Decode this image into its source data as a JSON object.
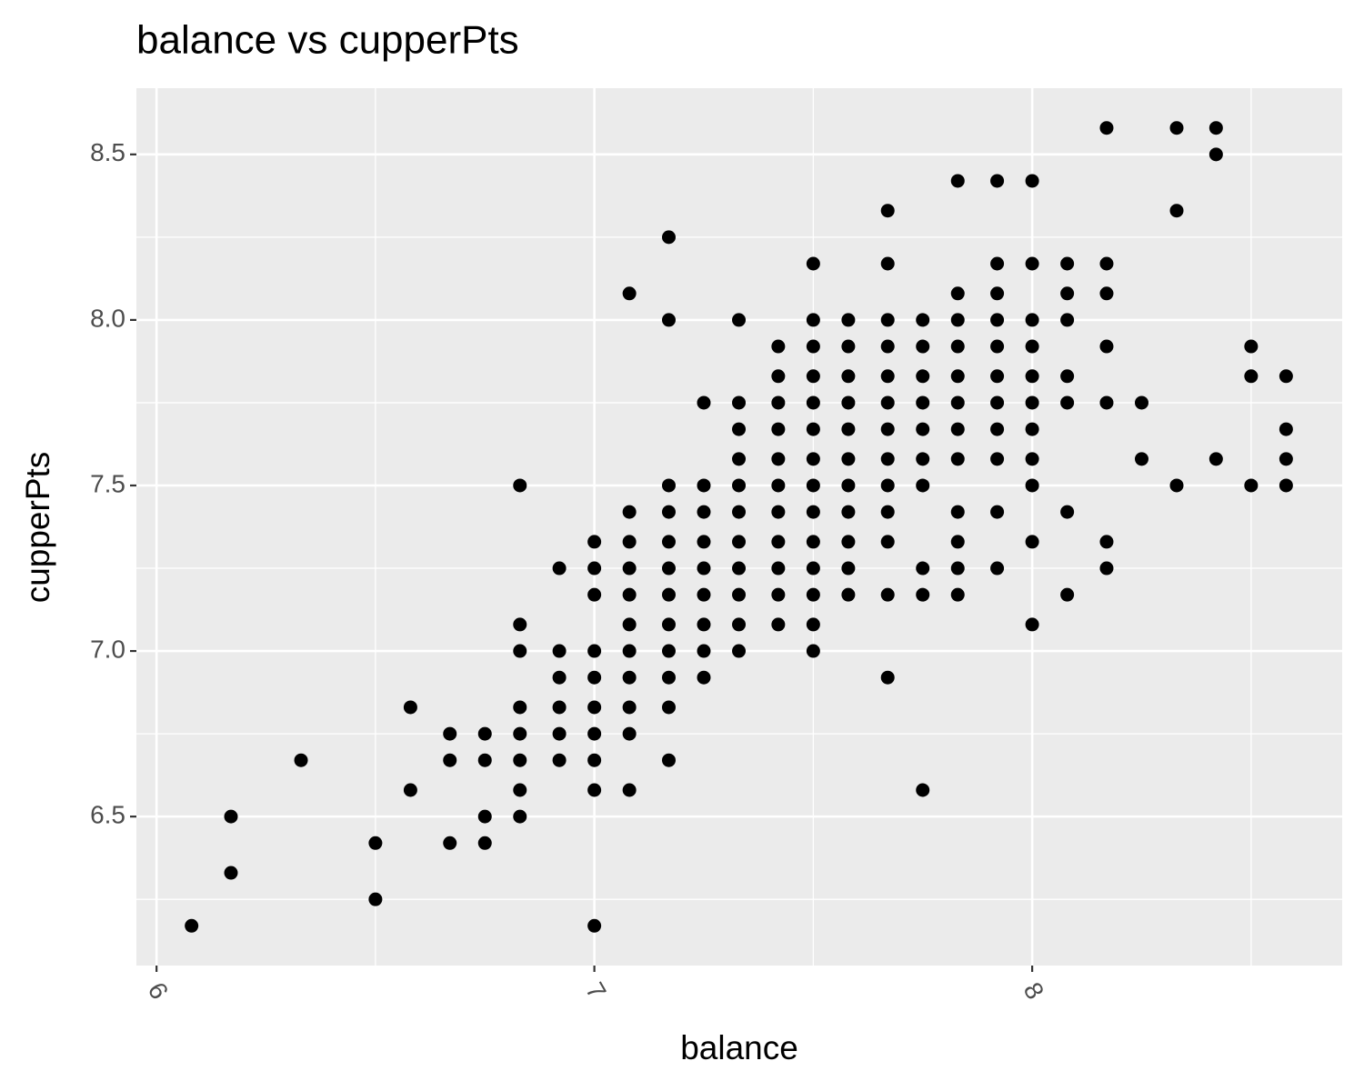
{
  "chart_data": {
    "type": "scatter",
    "title": "balance vs cupperPts",
    "x_label": "balance",
    "y_label": "cupperPts",
    "color": "#000000",
    "background": "#ebebeb",
    "grid": true,
    "xlim": [
      5.954,
      8.708
    ],
    "ylim": [
      6.05,
      8.7
    ],
    "xticks": [
      6,
      7,
      8
    ],
    "yticks": [
      6.5,
      {
        "value": 7,
        "label": "7.0"
      },
      7.5,
      {
        "value": 8,
        "label": "8.0"
      },
      8.5
    ],
    "x": [
      6.08,
      6.17,
      6.17,
      6.33,
      6.5,
      6.5,
      6.58,
      6.58,
      6.67,
      6.67,
      6.67,
      6.75,
      6.75,
      6.75,
      6.75,
      6.83,
      6.83,
      6.83,
      6.83,
      6.83,
      6.83,
      6.83,
      6.83,
      6.92,
      6.92,
      6.92,
      6.92,
      6.92,
      6.92,
      7.0,
      7.0,
      7.0,
      7.0,
      7.0,
      7.0,
      7.0,
      7.0,
      7.0,
      7.0,
      7.08,
      7.08,
      7.08,
      7.08,
      7.08,
      7.08,
      7.08,
      7.08,
      7.08,
      7.08,
      7.08,
      7.17,
      7.17,
      7.17,
      7.17,
      7.17,
      7.17,
      7.17,
      7.17,
      7.17,
      7.17,
      7.17,
      7.17,
      7.25,
      7.25,
      7.25,
      7.25,
      7.25,
      7.25,
      7.25,
      7.25,
      7.25,
      7.33,
      7.33,
      7.33,
      7.33,
      7.33,
      7.33,
      7.33,
      7.33,
      7.33,
      7.33,
      7.33,
      7.42,
      7.42,
      7.42,
      7.42,
      7.42,
      7.42,
      7.42,
      7.42,
      7.42,
      7.42,
      7.42,
      7.5,
      7.5,
      7.5,
      7.5,
      7.5,
      7.5,
      7.5,
      7.5,
      7.5,
      7.5,
      7.5,
      7.5,
      7.5,
      7.5,
      7.58,
      7.58,
      7.58,
      7.58,
      7.58,
      7.58,
      7.58,
      7.58,
      7.58,
      7.58,
      7.58,
      7.67,
      7.67,
      7.67,
      7.67,
      7.67,
      7.67,
      7.67,
      7.67,
      7.67,
      7.67,
      7.67,
      7.67,
      7.67,
      7.75,
      7.75,
      7.75,
      7.75,
      7.75,
      7.75,
      7.75,
      7.75,
      7.75,
      7.75,
      7.83,
      7.83,
      7.83,
      7.83,
      7.83,
      7.83,
      7.83,
      7.83,
      7.83,
      7.83,
      7.83,
      7.83,
      7.92,
      7.92,
      7.92,
      7.92,
      7.92,
      7.92,
      7.92,
      7.92,
      7.92,
      7.92,
      7.92,
      8.0,
      8.0,
      8.0,
      8.0,
      8.0,
      8.0,
      8.0,
      8.0,
      8.0,
      8.0,
      8.0,
      8.08,
      8.08,
      8.08,
      8.08,
      8.08,
      8.08,
      8.08,
      8.17,
      8.17,
      8.17,
      8.17,
      8.17,
      8.17,
      8.17,
      8.25,
      8.25,
      8.33,
      8.33,
      8.33,
      8.42,
      8.42,
      8.42,
      8.5,
      8.5,
      8.5,
      8.58,
      8.58,
      8.58,
      8.58
    ],
    "y": [
      6.17,
      6.5,
      6.33,
      6.67,
      6.42,
      6.25,
      6.83,
      6.58,
      6.75,
      6.67,
      6.42,
      6.75,
      6.67,
      6.5,
      6.42,
      7.5,
      7.08,
      7.0,
      6.83,
      6.75,
      6.67,
      6.58,
      6.5,
      7.25,
      7.0,
      6.92,
      6.83,
      6.75,
      6.67,
      7.33,
      7.25,
      7.17,
      7.0,
      6.92,
      6.83,
      6.75,
      6.67,
      6.58,
      6.17,
      8.08,
      7.42,
      7.33,
      7.25,
      7.17,
      7.08,
      7.0,
      6.92,
      6.83,
      6.75,
      6.58,
      8.25,
      8.0,
      7.5,
      7.42,
      7.33,
      7.25,
      7.17,
      7.08,
      7.0,
      6.92,
      6.83,
      6.67,
      7.75,
      7.5,
      7.42,
      7.33,
      7.25,
      7.17,
      7.08,
      7.0,
      6.92,
      8.0,
      7.75,
      7.67,
      7.58,
      7.5,
      7.42,
      7.33,
      7.25,
      7.17,
      7.08,
      7.0,
      7.92,
      7.83,
      7.75,
      7.67,
      7.58,
      7.5,
      7.42,
      7.33,
      7.25,
      7.17,
      7.08,
      8.17,
      8.0,
      7.92,
      7.83,
      7.75,
      7.67,
      7.58,
      7.5,
      7.42,
      7.33,
      7.25,
      7.17,
      7.08,
      7.0,
      8.0,
      7.92,
      7.83,
      7.75,
      7.67,
      7.58,
      7.5,
      7.42,
      7.33,
      7.25,
      7.17,
      8.33,
      8.17,
      8.0,
      7.92,
      7.83,
      7.75,
      7.67,
      7.58,
      7.5,
      7.42,
      7.33,
      7.17,
      6.92,
      8.0,
      7.92,
      7.83,
      7.75,
      7.67,
      7.58,
      7.5,
      7.25,
      7.17,
      6.58,
      8.42,
      8.08,
      8.0,
      7.92,
      7.83,
      7.75,
      7.67,
      7.58,
      7.42,
      7.33,
      7.25,
      7.17,
      8.42,
      8.17,
      8.08,
      8.0,
      7.92,
      7.83,
      7.75,
      7.67,
      7.58,
      7.42,
      7.25,
      8.42,
      8.17,
      8.0,
      7.92,
      7.83,
      7.75,
      7.67,
      7.58,
      7.5,
      7.33,
      7.08,
      8.17,
      8.08,
      8.0,
      7.83,
      7.75,
      7.42,
      7.17,
      8.58,
      8.17,
      8.08,
      7.92,
      7.75,
      7.33,
      7.25,
      7.75,
      7.58,
      8.58,
      8.33,
      7.5,
      8.58,
      8.5,
      7.58,
      7.92,
      7.83,
      7.5,
      7.83,
      7.67,
      7.58,
      7.5
    ]
  }
}
